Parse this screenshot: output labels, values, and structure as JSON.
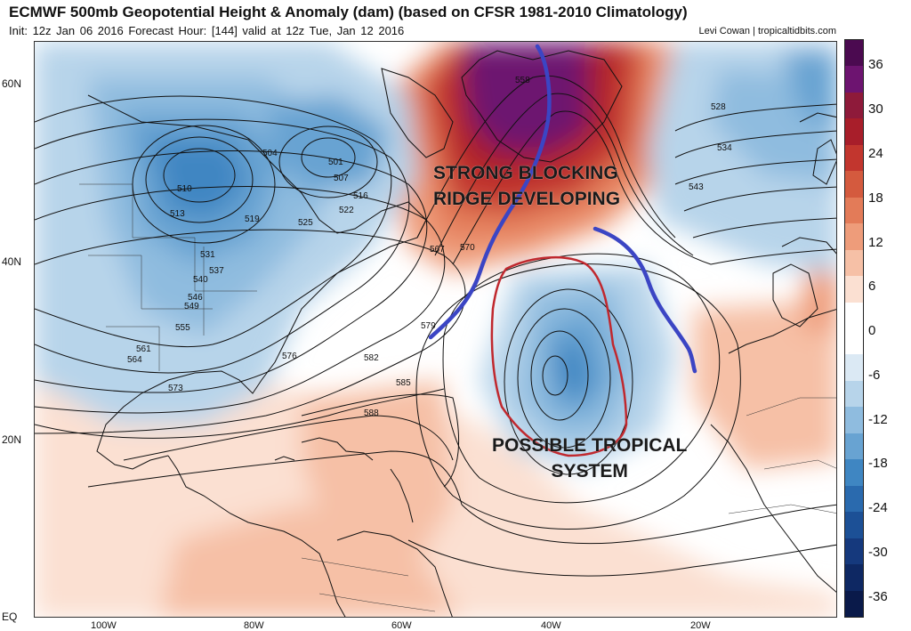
{
  "header": {
    "title": "ECMWF 500mb Geopotential Height & Anomaly (dam) (based on CFSR 1981-2010 Climatology)",
    "subtitle": "Init: 12z Jan 06 2016   Forecast Hour: [144]   valid at 12z Tue, Jan 12 2016",
    "credit": "Levi Cowan | tropicaltidbits.com"
  },
  "axes": {
    "lat_labels": [
      "60N",
      "40N",
      "20N",
      "EQ"
    ],
    "lon_labels": [
      "100W",
      "80W",
      "60W",
      "40W",
      "20W"
    ]
  },
  "colorbar": {
    "ticks": [
      "36",
      "30",
      "24",
      "18",
      "12",
      "6",
      "0",
      "-6",
      "-12",
      "-18",
      "-24",
      "-30",
      "-36"
    ],
    "colors": [
      "#4b0a50",
      "#6d1470",
      "#8e1a3a",
      "#a81e2a",
      "#c2362e",
      "#d45a3e",
      "#e37b58",
      "#ee9c7a",
      "#f6c0a6",
      "#fbe0d2",
      "#ffffff",
      "#ffffff",
      "#dbe9f4",
      "#b7d4ea",
      "#8fbcdf",
      "#68a3d2",
      "#3f86c2",
      "#2a6aae",
      "#1c5096",
      "#15397d",
      "#0e2863",
      "#0a1a4a"
    ]
  },
  "annotations": {
    "ridge_line1": "STRONG BLOCKING",
    "ridge_line2": "RIDGE DEVELOPING",
    "tropical_line1": "POSSIBLE TROPICAL",
    "tropical_line2": "SYSTEM"
  },
  "contour_labels": [
    "504",
    "501",
    "507",
    "510",
    "513",
    "516",
    "519",
    "522",
    "525",
    "528",
    "531",
    "534",
    "537",
    "540",
    "543",
    "546",
    "549",
    "555",
    "558",
    "561",
    "564",
    "567",
    "570",
    "573",
    "576",
    "579",
    "582",
    "585",
    "588"
  ]
}
